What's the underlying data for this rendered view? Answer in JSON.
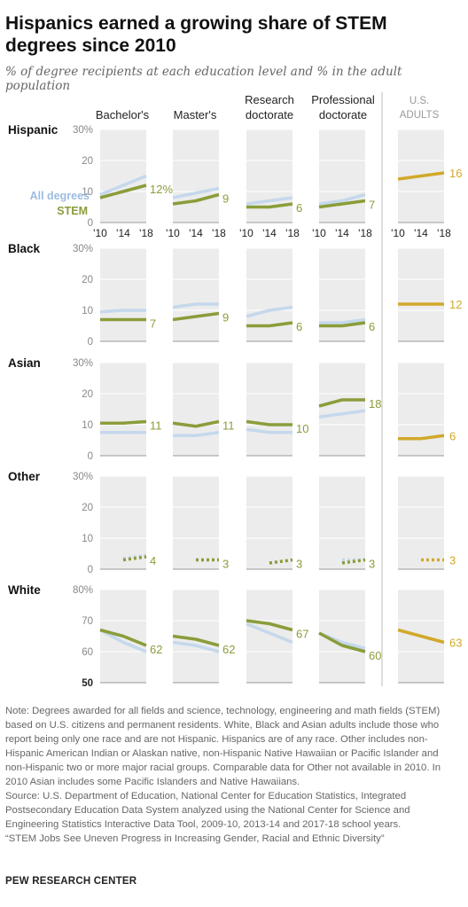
{
  "title": "Hispanics earned a growing share of STEM degrees since 2010",
  "subtitle": "% of degree recipients at each education level and % in the adult population",
  "columns": [
    "Bachelor's",
    "Master's",
    "Research doctorate",
    "Professional doctorate"
  ],
  "adults_label": "U.S. ADULTS",
  "legend": {
    "all_degrees": "All degrees",
    "stem": "STEM"
  },
  "colors": {
    "all_degrees": "#c5d8ec",
    "stem": "#8a9d3a",
    "adults": "#d1a92a",
    "panel_bg": "#ececec"
  },
  "chart_data": {
    "type": "line",
    "x": [
      "'10",
      "'14",
      "'18"
    ],
    "rows": [
      {
        "group": "Hispanic",
        "ylim": [
          0,
          30
        ],
        "yticks": [
          "30%",
          "20",
          "10",
          "0"
        ],
        "panels": [
          {
            "column": "Bachelor's",
            "all_degrees": [
              9,
              12,
              15
            ],
            "stem": [
              8,
              10,
              12
            ],
            "label": "12%"
          },
          {
            "column": "Master's",
            "all_degrees": [
              8,
              9.5,
              11
            ],
            "stem": [
              6,
              7,
              9
            ],
            "label": "9"
          },
          {
            "column": "Research doctorate",
            "all_degrees": [
              6,
              7,
              8
            ],
            "stem": [
              5,
              5,
              6
            ],
            "label": "6"
          },
          {
            "column": "Professional doctorate",
            "all_degrees": [
              6,
              7,
              9
            ],
            "stem": [
              5,
              6,
              7
            ],
            "label": "7"
          },
          {
            "column": "U.S. adults",
            "adults": [
              14,
              15,
              16
            ],
            "label": "16"
          }
        ]
      },
      {
        "group": "Black",
        "ylim": [
          0,
          30
        ],
        "yticks": [
          "30%",
          "20",
          "10",
          "0"
        ],
        "panels": [
          {
            "column": "Bachelor's",
            "all_degrees": [
              9.5,
              10,
              10
            ],
            "stem": [
              7,
              7,
              7
            ],
            "label": "7"
          },
          {
            "column": "Master's",
            "all_degrees": [
              11,
              12,
              12
            ],
            "stem": [
              7,
              8,
              9
            ],
            "label": "9"
          },
          {
            "column": "Research doctorate",
            "all_degrees": [
              8,
              10,
              11
            ],
            "stem": [
              5,
              5,
              6
            ],
            "label": "6"
          },
          {
            "column": "Professional doctorate",
            "all_degrees": [
              6,
              6,
              7
            ],
            "stem": [
              5,
              5,
              6
            ],
            "label": "6"
          },
          {
            "column": "U.S. adults",
            "adults": [
              12,
              12,
              12
            ],
            "label": "12"
          }
        ]
      },
      {
        "group": "Asian",
        "ylim": [
          0,
          30
        ],
        "yticks": [
          "30%",
          "20",
          "10",
          "0"
        ],
        "panels": [
          {
            "column": "Bachelor's",
            "all_degrees": [
              7.5,
              7.5,
              7.5
            ],
            "stem": [
              10.5,
              10.5,
              11
            ],
            "label": "11"
          },
          {
            "column": "Master's",
            "all_degrees": [
              6.5,
              6.5,
              7.5
            ],
            "stem": [
              10.5,
              9.5,
              11
            ],
            "label": "11"
          },
          {
            "column": "Research doctorate",
            "all_degrees": [
              8.5,
              7.5,
              7.5
            ],
            "stem": [
              11,
              10,
              10
            ],
            "label": "10"
          },
          {
            "column": "Professional doctorate",
            "all_degrees": [
              12.5,
              13.5,
              14.5
            ],
            "stem": [
              16,
              18,
              18
            ],
            "label": "18"
          },
          {
            "column": "U.S. adults",
            "adults": [
              5.5,
              5.5,
              6.5
            ],
            "label": "6"
          }
        ]
      },
      {
        "group": "Other",
        "ylim": [
          0,
          30
        ],
        "yticks": [
          "30%",
          "20",
          "10",
          "0"
        ],
        "dotted": true,
        "panels": [
          {
            "column": "Bachelor's",
            "all_degrees": [
              null,
              3.5,
              4.5
            ],
            "stem": [
              null,
              3,
              4
            ],
            "label": "4"
          },
          {
            "column": "Master's",
            "all_degrees": [
              null,
              3,
              3
            ],
            "stem": [
              null,
              3,
              3
            ],
            "label": "3"
          },
          {
            "column": "Research doctorate",
            "all_degrees": [
              null,
              2,
              3
            ],
            "stem": [
              null,
              2,
              3
            ],
            "label": "3"
          },
          {
            "column": "Professional doctorate",
            "all_degrees": [
              null,
              3,
              3
            ],
            "stem": [
              null,
              2,
              3
            ],
            "label": "3"
          },
          {
            "column": "U.S. adults",
            "adults": [
              null,
              3,
              3
            ],
            "label": "3"
          }
        ]
      },
      {
        "group": "White",
        "ylim": [
          50,
          80
        ],
        "yticks": [
          "80%",
          "70",
          "60",
          "50"
        ],
        "panels": [
          {
            "column": "Bachelor's",
            "all_degrees": [
              67,
              63,
              60
            ],
            "stem": [
              67,
              65,
              62
            ],
            "label": "62"
          },
          {
            "column": "Master's",
            "all_degrees": [
              63,
              62,
              60
            ],
            "stem": [
              65,
              64,
              62
            ],
            "label": "62"
          },
          {
            "column": "Research doctorate",
            "all_degrees": [
              69,
              66,
              63
            ],
            "stem": [
              70,
              69,
              67
            ],
            "label": "67"
          },
          {
            "column": "Professional doctorate",
            "all_degrees": [
              66,
              63,
              61
            ],
            "stem": [
              66,
              62,
              60
            ],
            "label": "60"
          },
          {
            "column": "U.S. adults",
            "adults": [
              67,
              65,
              63
            ],
            "label": "63"
          }
        ]
      }
    ]
  },
  "notes": [
    "Note: Degrees awarded for all fields and science, technology, engineering and math fields (STEM) based on U.S. citizens and permanent residents. White, Black and Asian adults include those who report being only one race and are not Hispanic. Hispanics are of any race. Other includes non-Hispanic American Indian or Alaskan native, non-Hispanic Native Hawaiian or Pacific Islander and non-Hispanic two or more major racial groups. Comparable data for Other not available in 2010. In 2010 Asian includes some Pacific Islanders and Native Hawaiians.",
    "Source: U.S. Department of Education, National Center for Education Statistics, Integrated Postsecondary Education Data System analyzed using the National Center for Science and Engineering Statistics Interactive Data Tool, 2009-10, 2013-14 and 2017-18 school years.",
    "“STEM Jobs See Uneven Progress in Increasing Gender, Racial and Ethnic Diversity”"
  ],
  "brand": "PEW RESEARCH CENTER"
}
